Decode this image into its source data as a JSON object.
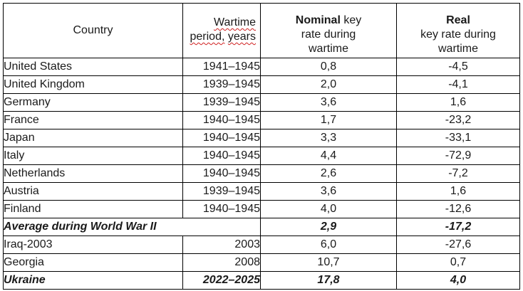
{
  "table": {
    "headers": {
      "country": "Country",
      "period": {
        "line1": "Wartime",
        "line2_word1": "period,",
        "line2_word2": "years"
      },
      "nominal": {
        "bold": "Nominal",
        "line1_rest": " key",
        "line2": "rate during",
        "line3": "wartime"
      },
      "real": {
        "bold": "Real",
        "line2": "key rate during",
        "line3": "wartime"
      }
    },
    "rows": [
      {
        "country": "United States",
        "period": "1941–1945",
        "nominal": "0,8",
        "real": "-4,5"
      },
      {
        "country": "United Kingdom",
        "period": "1939–1945",
        "nominal": "2,0",
        "real": "-4,1"
      },
      {
        "country": "Germany",
        "period": "1939–1945",
        "nominal": "3,6",
        "real": "1,6"
      },
      {
        "country": "France",
        "period": "1940–1945",
        "nominal": "1,7",
        "real": "-23,2"
      },
      {
        "country": "Japan",
        "period": "1940–1945",
        "nominal": "3,3",
        "real": "-33,1"
      },
      {
        "country": "Italy",
        "period": "1940–1945",
        "nominal": "4,4",
        "real": "-72,9"
      },
      {
        "country": "Netherlands",
        "period": "1940–1945",
        "nominal": "2,6",
        "real": "-7,2"
      },
      {
        "country": "Austria",
        "period": "1939–1945",
        "nominal": "3,6",
        "real": "1,6"
      },
      {
        "country": "Finland",
        "period": "1940–1945",
        "nominal": "4,0",
        "real": "-12,6"
      }
    ],
    "average_row": {
      "label": "Average during World War II",
      "nominal": "2,9",
      "real": "-17,2"
    },
    "other_rows": [
      {
        "country": "Iraq-2003",
        "period": "2003",
        "nominal": "6,0",
        "real": "-27,6"
      },
      {
        "country": "Georgia",
        "period": "2008",
        "nominal": "10,7",
        "real": "0,7"
      }
    ],
    "ukraine_row": {
      "country": "Ukraine",
      "period": "2022–2025",
      "nominal": "17,8",
      "real": "4,0"
    }
  }
}
